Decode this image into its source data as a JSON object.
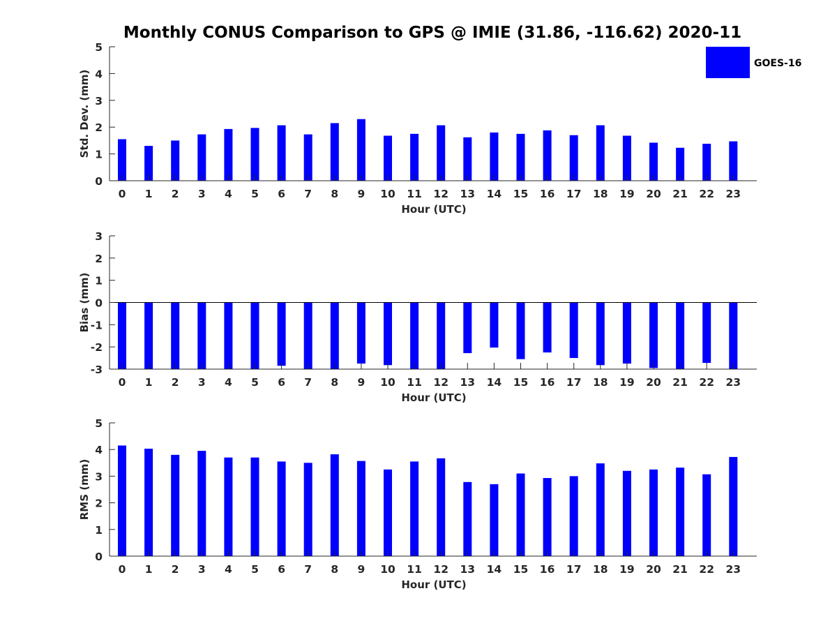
{
  "figure": {
    "title": "Monthly CONUS Comparison to GPS @ IMIE (31.86, -116.62) 2020-11"
  },
  "legend": {
    "label": "GOES-16",
    "color": "#0000ff"
  },
  "chart_data": [
    {
      "type": "bar",
      "ylabel": "Std. Dev. (mm)",
      "xlabel": "Hour (UTC)",
      "ylim": [
        0,
        5
      ],
      "yticks": [
        0,
        1,
        2,
        3,
        4,
        5
      ],
      "categories": [
        "0",
        "1",
        "2",
        "3",
        "4",
        "5",
        "6",
        "7",
        "8",
        "9",
        "10",
        "11",
        "12",
        "13",
        "14",
        "15",
        "16",
        "17",
        "18",
        "19",
        "20",
        "21",
        "22",
        "23"
      ],
      "series": [
        {
          "name": "GOES-16",
          "values": [
            1.55,
            1.3,
            1.5,
            1.73,
            1.93,
            1.97,
            2.07,
            1.73,
            2.15,
            2.3,
            1.68,
            1.75,
            2.07,
            1.62,
            1.8,
            1.75,
            1.88,
            1.7,
            2.07,
            1.68,
            1.42,
            1.23,
            1.38,
            1.47
          ]
        }
      ],
      "legend_position": "top-right"
    },
    {
      "type": "bar",
      "ylabel": "Bias (mm)",
      "xlabel": "Hour (UTC)",
      "ylim": [
        -3,
        3
      ],
      "yticks": [
        -3,
        -2,
        -1,
        0,
        1,
        2,
        3
      ],
      "categories": [
        "0",
        "1",
        "2",
        "3",
        "4",
        "5",
        "6",
        "7",
        "8",
        "9",
        "10",
        "11",
        "12",
        "13",
        "14",
        "15",
        "16",
        "17",
        "18",
        "19",
        "20",
        "21",
        "22",
        "23"
      ],
      "series": [
        {
          "name": "GOES-16",
          "values": [
            -3.4,
            -3.5,
            -3.3,
            -3.2,
            -3.3,
            -3.2,
            -2.85,
            -3.2,
            -3.3,
            -2.75,
            -2.82,
            -3.1,
            -3.2,
            -2.28,
            -2.03,
            -2.55,
            -2.25,
            -2.5,
            -2.82,
            -2.75,
            -2.95,
            -3.2,
            -2.72,
            -3.3
          ]
        }
      ]
    },
    {
      "type": "bar",
      "ylabel": "RMS (mm)",
      "xlabel": "Hour (UTC)",
      "ylim": [
        0,
        5
      ],
      "yticks": [
        0,
        1,
        2,
        3,
        4,
        5
      ],
      "categories": [
        "0",
        "1",
        "2",
        "3",
        "4",
        "5",
        "6",
        "7",
        "8",
        "9",
        "10",
        "11",
        "12",
        "13",
        "14",
        "15",
        "16",
        "17",
        "18",
        "19",
        "20",
        "21",
        "22",
        "23"
      ],
      "series": [
        {
          "name": "GOES-16",
          "values": [
            4.15,
            4.03,
            3.8,
            3.95,
            3.7,
            3.7,
            3.55,
            3.5,
            3.82,
            3.57,
            3.25,
            3.55,
            3.67,
            2.78,
            2.7,
            3.1,
            2.93,
            3.0,
            3.48,
            3.2,
            3.25,
            3.32,
            3.07,
            3.72
          ]
        }
      ]
    }
  ]
}
